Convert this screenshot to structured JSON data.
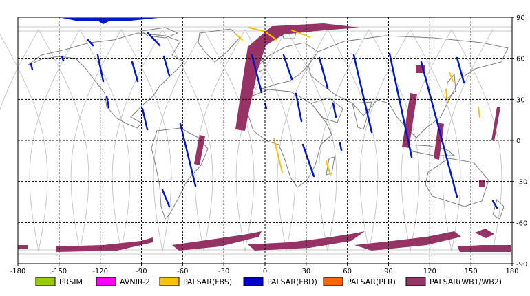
{
  "map": {
    "x_ticks": [
      "-180",
      "-150",
      "-120",
      "-90",
      "-60",
      "-30",
      "0",
      "30",
      "60",
      "90",
      "120",
      "150",
      "180"
    ],
    "y_ticks": [
      "90",
      "60",
      "30",
      "0",
      "-30",
      "-60",
      "-90"
    ],
    "lon_range": [
      -180,
      180
    ],
    "lat_range": [
      -90,
      90
    ],
    "grid": "dashed",
    "colors": {
      "frame": "#000000",
      "grid": "#000000",
      "orbit": "#c8c8c8",
      "coast": "#808080",
      "fbd": "#0018c8",
      "wide": "#963264",
      "fbs": "#ffc000"
    }
  },
  "legend": [
    {
      "label": "PRSIM",
      "color": "#99cc00"
    },
    {
      "label": "AVNIR-2",
      "color": "#ff00ff"
    },
    {
      "label": "PALSAR(FBS)",
      "color": "#ffc000"
    },
    {
      "label": "PALSAR(FBD)",
      "color": "#0000cc"
    },
    {
      "label": "PALSAR(PLR)",
      "color": "#ff6600"
    },
    {
      "label": "PALSAR(WB1/WB2)",
      "color": "#993366"
    }
  ]
}
